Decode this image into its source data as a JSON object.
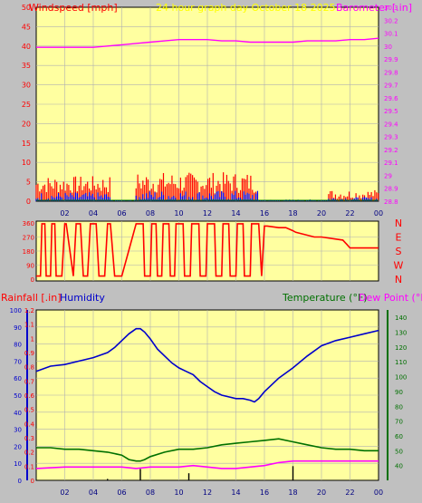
{
  "title": "24 hour graph day   October 18 2025",
  "colors": {
    "background": "#c0c0c0",
    "plot_bg": "#ffffa0",
    "grid": "#b0b0b0",
    "wind_speed": "#ff0000",
    "wind_avg": "#0000ff",
    "wind_calm": "#008000",
    "barometer": "#ff00ff",
    "direction": "#ff0000",
    "humidity": "#0000cc",
    "temperature": "#007000",
    "dew_point": "#ff00ff",
    "rainfall": "#000000",
    "title": "#ffff00",
    "tick_label": "#000080"
  },
  "chart_data": [
    {
      "type": "bar",
      "title": "24 hour graph day   October 18 2025",
      "left_label": "Windspeed [mph]",
      "right_label": "Barometer [.in]",
      "x_tick_labels": [
        "02",
        "04",
        "06",
        "08",
        "10",
        "12",
        "14",
        "16",
        "18",
        "20",
        "22",
        "00"
      ],
      "left_ticks": [
        "0",
        "5",
        "10",
        "15",
        "20",
        "25",
        "30",
        "35",
        "40",
        "45",
        "50"
      ],
      "right_ticks": [
        "28.8",
        "28.9",
        "29",
        "29.1",
        "29.2",
        "29.3",
        "29.4",
        "29.5",
        "29.6",
        "29.7",
        "29.8",
        "29.9",
        "30",
        "30.1",
        "30.2",
        "30.3"
      ],
      "ylim_left": [
        0,
        50
      ],
      "ylim_right": [
        28.8,
        30.3
      ],
      "xlim_hours": [
        0,
        24
      ],
      "series": [
        {
          "name": "Windspeed",
          "kind": "bar",
          "axis": "left",
          "segments": [
            {
              "from": 0.0,
              "to": 5.2,
              "low": 0,
              "high": 4.2
            },
            {
              "from": 5.2,
              "to": 7.0,
              "low": 0,
              "high": 0.6
            },
            {
              "from": 7.0,
              "to": 15.6,
              "low": 0,
              "high": 5.0
            },
            {
              "from": 15.6,
              "to": 20.5,
              "low": 0,
              "high": 0.8
            },
            {
              "from": 20.5,
              "to": 24.0,
              "low": 0,
              "high": 2.0
            }
          ]
        },
        {
          "name": "Gust",
          "kind": "bar",
          "axis": "left",
          "segments": [
            {
              "from": 0.0,
              "to": 5.2,
              "low": 2,
              "high": 6.5
            },
            {
              "from": 7.0,
              "to": 15.6,
              "low": 2,
              "high": 7.5
            },
            {
              "from": 20.5,
              "to": 24.0,
              "low": 0.5,
              "high": 3.0
            }
          ]
        },
        {
          "name": "Barometer",
          "kind": "line",
          "axis": "right",
          "x": [
            0,
            1,
            2,
            3,
            4,
            5,
            6,
            7,
            8,
            9,
            10,
            11,
            12,
            13,
            14,
            15,
            16,
            17,
            18,
            19,
            20,
            21,
            22,
            23,
            24
          ],
          "y": [
            29.99,
            29.99,
            29.99,
            29.99,
            29.99,
            30.0,
            30.01,
            30.02,
            30.03,
            30.04,
            30.05,
            30.05,
            30.05,
            30.04,
            30.04,
            30.03,
            30.03,
            30.03,
            30.03,
            30.04,
            30.04,
            30.04,
            30.05,
            30.05,
            30.06
          ]
        }
      ]
    },
    {
      "type": "line",
      "title": "",
      "left_ticks": [
        "0",
        "90",
        "180",
        "270",
        "360"
      ],
      "right_labels": [
        "N",
        "W",
        "S",
        "E",
        "N"
      ],
      "ylim": [
        0,
        360
      ],
      "xlim_hours": [
        0,
        24
      ],
      "series": [
        {
          "name": "Wind Direction",
          "axis": "left",
          "x": [
            0,
            0.3,
            0.4,
            0.6,
            0.7,
            1.0,
            1.1,
            1.3,
            1.4,
            1.8,
            2.0,
            2.1,
            2.6,
            2.8,
            3.1,
            3.3,
            3.6,
            3.8,
            4.2,
            4.4,
            4.8,
            5.0,
            5.2,
            5.5,
            6.0,
            7.0,
            7.5,
            7.6,
            8.0,
            8.1,
            8.4,
            8.5,
            8.8,
            8.9,
            9.3,
            9.4,
            9.7,
            9.8,
            10.3,
            10.4,
            10.8,
            10.9,
            11.4,
            11.5,
            11.9,
            12.0,
            12.5,
            12.6,
            13.0,
            13.1,
            13.5,
            13.6,
            14.0,
            14.1,
            14.5,
            14.6,
            15.0,
            15.1,
            15.6,
            15.8,
            16.0,
            16.2,
            17.0,
            17.5,
            18.0,
            18.2,
            19.5,
            20.0,
            21.5,
            21.8,
            22.0,
            24.0
          ],
          "y": [
            20,
            20,
            355,
            355,
            20,
            20,
            355,
            355,
            20,
            20,
            355,
            355,
            20,
            355,
            355,
            20,
            20,
            355,
            355,
            20,
            20,
            355,
            355,
            20,
            20,
            355,
            355,
            20,
            20,
            355,
            355,
            20,
            20,
            355,
            355,
            20,
            20,
            355,
            355,
            20,
            20,
            355,
            355,
            20,
            20,
            355,
            355,
            20,
            20,
            355,
            355,
            20,
            20,
            355,
            355,
            20,
            20,
            355,
            355,
            20,
            340,
            340,
            330,
            330,
            310,
            300,
            270,
            270,
            250,
            220,
            200,
            200
          ]
        }
      ]
    },
    {
      "type": "line",
      "left_label": "Rainfall [.in]",
      "left_label2": "Humidity",
      "right_label": "Temperature (°F)",
      "right_label2": "Dew Point (°F)",
      "rain_ticks": [
        "0",
        "0.1",
        "0.2",
        "0.3",
        "0.4",
        "0.5",
        "0.6",
        "0.7",
        "0.8",
        "0.9",
        "1",
        "1.1",
        "1.2"
      ],
      "humidity_ticks": [
        "0",
        "10",
        "20",
        "30",
        "40",
        "50",
        "60",
        "70",
        "80",
        "90",
        "100"
      ],
      "right_ticks": [
        "40",
        "50",
        "60",
        "70",
        "80",
        "90",
        "100",
        "110",
        "120",
        "130",
        "140"
      ],
      "x_tick_labels": [
        "02",
        "04",
        "06",
        "08",
        "10",
        "12",
        "14",
        "16",
        "18",
        "20",
        "22",
        "00"
      ],
      "ylim_rain": [
        0,
        1.2
      ],
      "ylim_humidity": [
        0,
        100
      ],
      "ylim_temp": [
        30,
        145
      ],
      "xlim_hours": [
        0,
        24
      ],
      "series": [
        {
          "name": "Humidity",
          "axis": "humidity",
          "x": [
            0,
            1,
            2,
            3,
            4,
            5,
            5.5,
            6,
            6.5,
            7,
            7.3,
            7.6,
            8,
            8.5,
            9,
            9.5,
            10,
            10.5,
            11,
            11.5,
            12,
            12.5,
            13,
            13.5,
            14,
            14.5,
            15,
            15.3,
            15.6,
            16,
            16.5,
            17,
            18,
            19,
            20,
            21,
            22,
            23,
            24
          ],
          "y": [
            64,
            67,
            68,
            70,
            72,
            75,
            78,
            82,
            86,
            89,
            89,
            87,
            83,
            77,
            73,
            69,
            66,
            64,
            62,
            58,
            55,
            52,
            50,
            49,
            48,
            48,
            47,
            46,
            48,
            52,
            56,
            60,
            66,
            73,
            79,
            82,
            84,
            86,
            88
          ]
        },
        {
          "name": "Temperature",
          "axis": "temp",
          "x": [
            0,
            1,
            2,
            3,
            4,
            5,
            6,
            6.5,
            7,
            7.3,
            7.6,
            8,
            9,
            10,
            11,
            12,
            13,
            14,
            15,
            16,
            17,
            18,
            19,
            20,
            21,
            22,
            23,
            24
          ],
          "y": [
            52,
            52,
            51,
            51,
            50,
            49,
            47,
            44,
            43,
            43,
            44,
            46,
            49,
            51,
            51,
            52,
            54,
            55,
            56,
            57,
            58,
            56,
            54,
            52,
            51,
            51,
            50,
            50
          ]
        },
        {
          "name": "Dew Point",
          "axis": "temp",
          "x": [
            0,
            2,
            4,
            6,
            7,
            8,
            9,
            10,
            11,
            12,
            13,
            14,
            15,
            16,
            17,
            18,
            19,
            20,
            21,
            22,
            23,
            24
          ],
          "y": [
            38,
            39,
            39,
            39,
            38,
            39,
            39,
            39,
            40,
            39,
            38,
            38,
            39,
            40,
            42,
            43,
            43,
            43,
            43,
            43,
            43,
            43
          ]
        },
        {
          "name": "Rainfall",
          "axis": "rain",
          "kind": "bar",
          "x": [
            5.0,
            7.3,
            10.7,
            18.0
          ],
          "y": [
            0.01,
            0.08,
            0.05,
            0.1
          ]
        }
      ]
    }
  ]
}
